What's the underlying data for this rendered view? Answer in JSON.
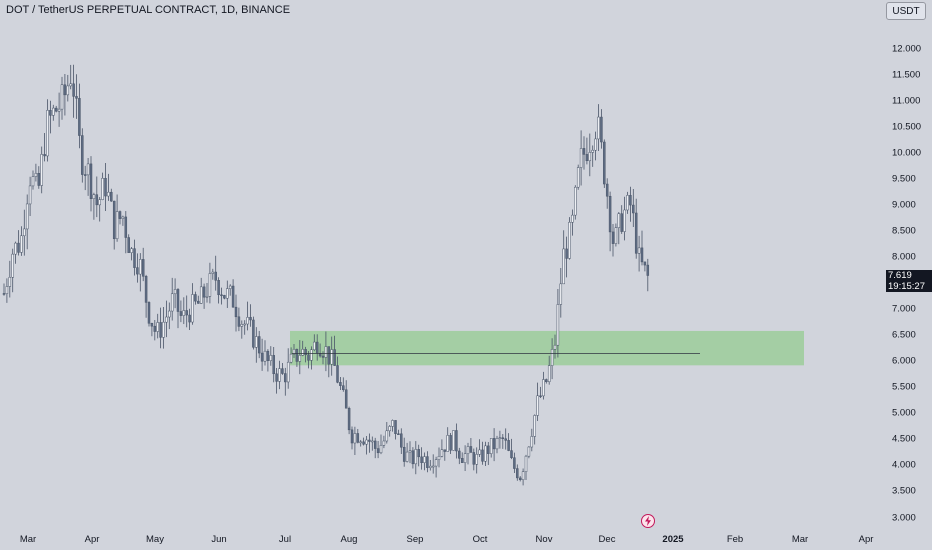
{
  "header": {
    "title": "DOT / TetherUS PERPETUAL CONTRACT, 1D, BINANCE"
  },
  "toolbar": {
    "currency_label": "USDT"
  },
  "price_marker": {
    "price": "7.619",
    "countdown": "19:15:27"
  },
  "colors": {
    "background": "#d1d4dc",
    "candle": "#5d6b82",
    "zone_fill": "#9ccc9a",
    "zone_line": "#2e3440",
    "event_icon": "#c2185b"
  },
  "icons": {
    "event": "lightning-icon"
  },
  "chart_data": {
    "type": "candlestick",
    "title": "DOT / TetherUS PERPETUAL CONTRACT, 1D, BINANCE",
    "y_ticks": [
      "12.000",
      "11.500",
      "11.000",
      "10.500",
      "10.000",
      "9.500",
      "9.000",
      "8.500",
      "8.000",
      "7.500",
      "7.000",
      "6.500",
      "6.000",
      "5.500",
      "5.000",
      "4.500",
      "4.000",
      "3.500",
      "3.000"
    ],
    "x_ticks": [
      "Mar",
      "Apr",
      "May",
      "Jun",
      "Jul",
      "Aug",
      "Sep",
      "Oct",
      "Nov",
      "Dec",
      "2025",
      "Feb",
      "Mar",
      "Apr"
    ],
    "ylim": [
      2.9,
      12.4
    ],
    "last_price": 7.619,
    "zone": {
      "low": 5.92,
      "high": 6.58,
      "line": 6.15
    },
    "series": [
      {
        "values": [
          7.3,
          8.1,
          8.3,
          9.6,
          9.2,
          10.5,
          10.8,
          11.0,
          11.6,
          10.0,
          9.6,
          9.0,
          9.4,
          8.6,
          8.8,
          8.1,
          7.9,
          7.0,
          6.5,
          6.8,
          7.2,
          6.8,
          7.0,
          7.1,
          7.4,
          7.6,
          7.3,
          7.2,
          6.8,
          6.6,
          6.3,
          6.0,
          5.8,
          5.7,
          6.0,
          6.2,
          6.1,
          6.4,
          6.2,
          5.9,
          5.3,
          4.6,
          4.6,
          4.5,
          4.3,
          4.5,
          4.8,
          4.3,
          4.1,
          4.2,
          4.1,
          4.2,
          4.4,
          4.5,
          4.2,
          4.2,
          4.1,
          4.3,
          4.4,
          4.5,
          4.0,
          3.8,
          4.5,
          5.2,
          5.6,
          6.3,
          8.0,
          8.5,
          9.8,
          10.2,
          10.6,
          9.5,
          8.2,
          8.8,
          9.0,
          7.9,
          7.6
        ]
      }
    ]
  }
}
